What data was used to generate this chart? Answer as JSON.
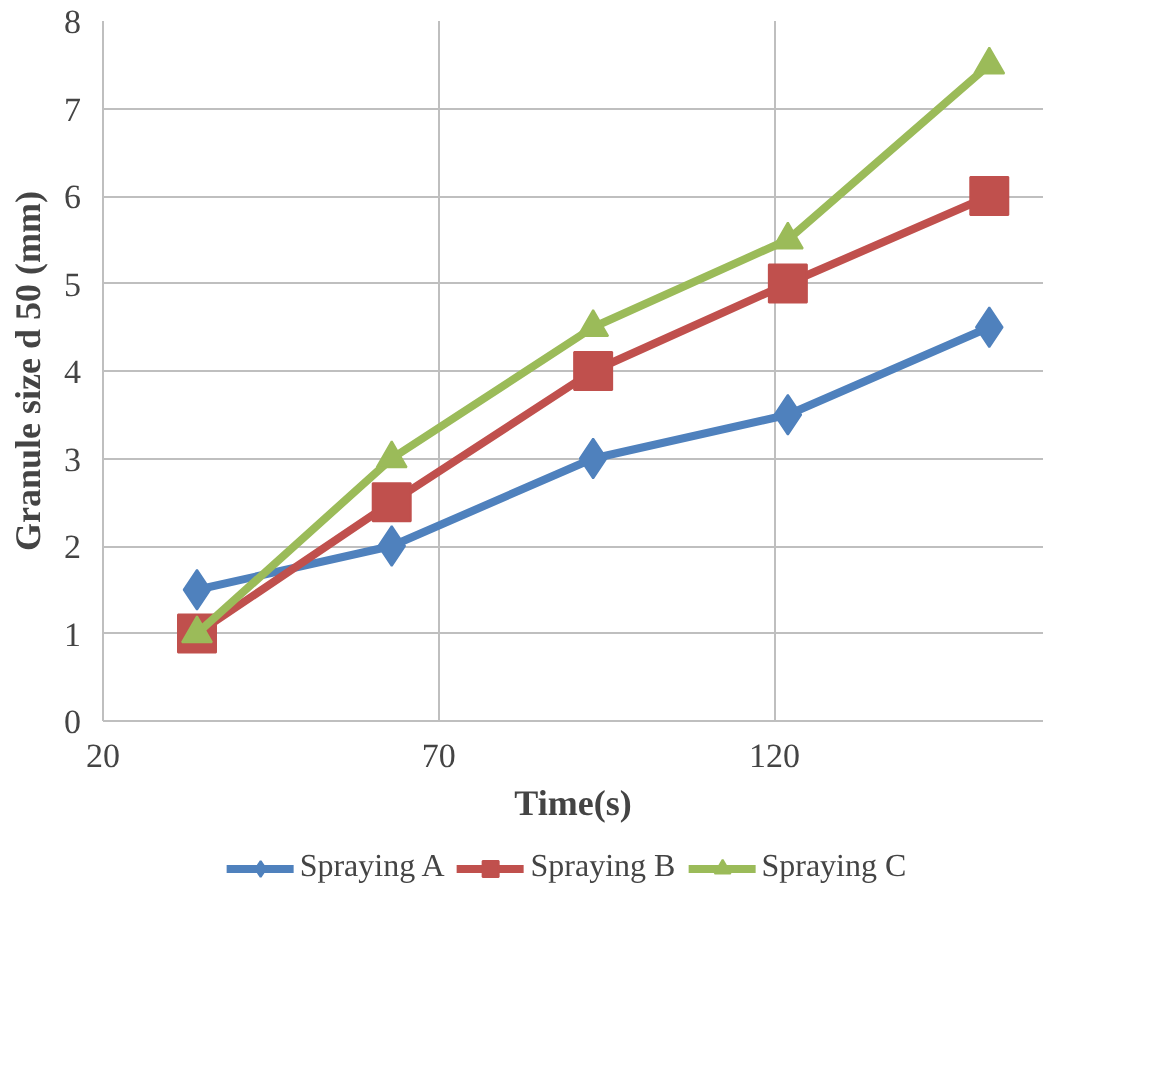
{
  "chart_data": {
    "type": "line",
    "xlabel": "Time(s)",
    "ylabel": "Granule size d 50 (mm)",
    "xlim": [
      20,
      160
    ],
    "xticks": [
      20,
      70,
      120
    ],
    "ylim": [
      0,
      8
    ],
    "yticks": [
      0,
      1,
      2,
      3,
      4,
      5,
      6,
      7,
      8
    ],
    "x": [
      34,
      63,
      93,
      122,
      152
    ],
    "grid": true,
    "legend": "bottom",
    "series": [
      {
        "name": "Spraying A",
        "color": "#4f81bd",
        "marker": "diamond",
        "values": [
          1.5,
          2,
          3,
          3.5,
          4.5
        ]
      },
      {
        "name": "Spraying B",
        "color": "#c0504d",
        "marker": "square",
        "values": [
          1,
          2.5,
          4,
          5,
          6
        ]
      },
      {
        "name": "Spraying C",
        "color": "#9bbb59",
        "marker": "triangle",
        "values": [
          1,
          3,
          4.5,
          5.5,
          7.5
        ]
      }
    ]
  }
}
